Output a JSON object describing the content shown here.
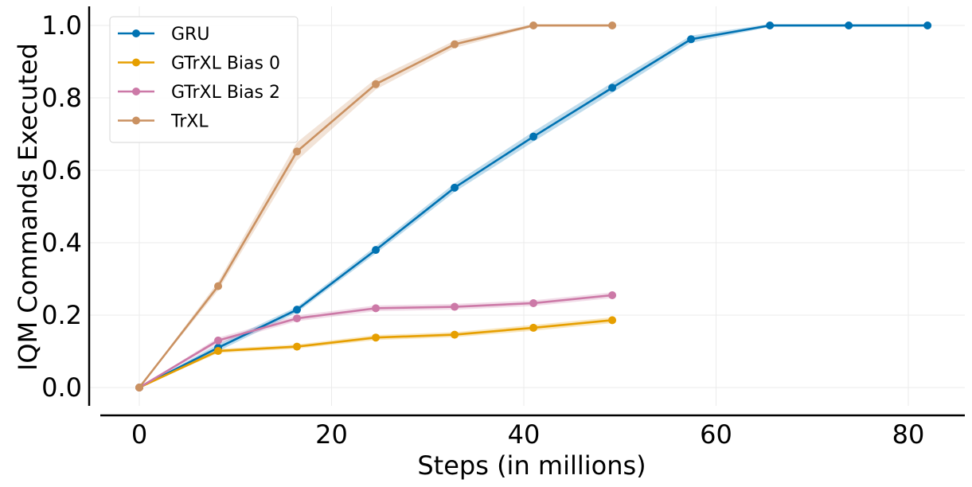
{
  "chart_data": {
    "type": "line",
    "title": "",
    "xlabel": "Steps (in millions)",
    "ylabel": "IQM Commands Executed",
    "xlim": [
      -5,
      86
    ],
    "ylim": [
      -0.05,
      1.05
    ],
    "xticks": [
      0,
      20,
      40,
      60,
      80
    ],
    "yticks": [
      0.0,
      0.2,
      0.4,
      0.6,
      0.8,
      1.0
    ],
    "xtick_labels": [
      "0",
      "20",
      "40",
      "60",
      "80"
    ],
    "ytick_labels": [
      "0.0",
      "0.2",
      "0.4",
      "0.6",
      "0.8",
      "1.0"
    ],
    "grid": true,
    "legend_position": "top-left",
    "series": [
      {
        "name": "GRU",
        "color": "#0072b2",
        "x": [
          0,
          8.2,
          16.4,
          24.6,
          32.8,
          41.0,
          49.2,
          57.4,
          65.6,
          73.8,
          82.0
        ],
        "y": [
          0.0,
          0.11,
          0.215,
          0.38,
          0.552,
          0.693,
          0.828,
          0.962,
          1.0,
          1.0,
          1.0
        ],
        "band": [
          0.0,
          0.01,
          0.008,
          0.01,
          0.012,
          0.014,
          0.014,
          0.01,
          0.004,
          0.004,
          0.004
        ]
      },
      {
        "name": "GTrXL Bias 0",
        "color": "#e69f00",
        "x": [
          0,
          8.2,
          16.4,
          24.6,
          32.8,
          41.0,
          49.2
        ],
        "y": [
          0.0,
          0.101,
          0.113,
          0.138,
          0.146,
          0.165,
          0.186
        ],
        "band": [
          0.0,
          0.006,
          0.006,
          0.007,
          0.007,
          0.008,
          0.008
        ]
      },
      {
        "name": "GTrXL Bias 2",
        "color": "#cc79a7",
        "x": [
          0,
          8.2,
          16.4,
          24.6,
          32.8,
          41.0,
          49.2
        ],
        "y": [
          0.0,
          0.13,
          0.191,
          0.219,
          0.223,
          0.233,
          0.255
        ],
        "band": [
          0.0,
          0.008,
          0.008,
          0.008,
          0.008,
          0.008,
          0.008
        ]
      },
      {
        "name": "TrXL",
        "color": "#ca9161",
        "x": [
          0,
          8.2,
          16.4,
          24.6,
          32.8,
          41.0,
          49.2
        ],
        "y": [
          0.0,
          0.28,
          0.652,
          0.838,
          0.948,
          1.0,
          1.0
        ],
        "band": [
          0.0,
          0.012,
          0.025,
          0.015,
          0.01,
          0.004,
          0.004
        ]
      }
    ]
  }
}
